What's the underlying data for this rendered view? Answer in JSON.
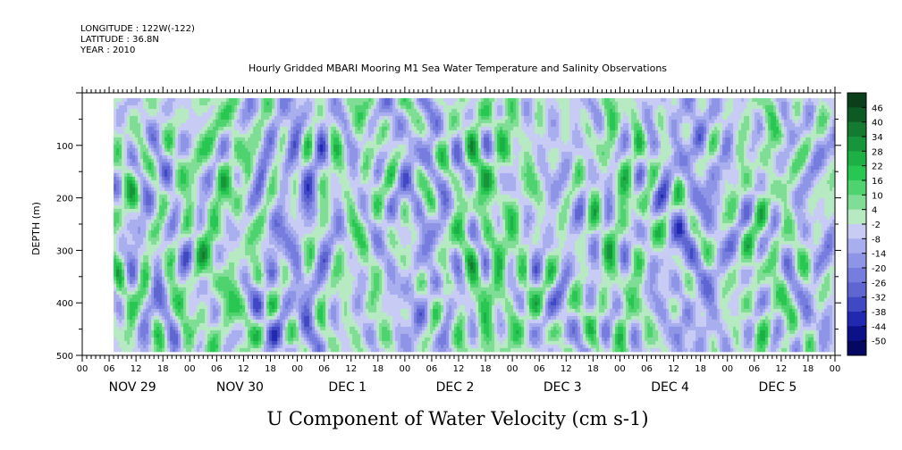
{
  "header": {
    "longitude": "LONGITUDE : 122W(-122)",
    "latitude": "LATITUDE : 36.8N",
    "year": "YEAR : 2010"
  },
  "chart_data": {
    "type": "heatmap",
    "title": "Hourly Gridded MBARI Mooring M1 Sea Water Temperature and Salinity Observations",
    "xlabel": "U Component of Water Velocity (cm s-1)",
    "ylabel": "DEPTH (m)",
    "ylim": [
      500,
      0
    ],
    "y_ticks": [
      100,
      200,
      300,
      400,
      500
    ],
    "hour_ticks": [
      "00",
      "06",
      "12",
      "18",
      "00",
      "06",
      "12",
      "18",
      "00",
      "06",
      "12",
      "18",
      "00",
      "06",
      "12",
      "18",
      "00",
      "06",
      "12",
      "18",
      "00",
      "06",
      "12",
      "18",
      "00",
      "06",
      "12",
      "18",
      "00"
    ],
    "day_labels": [
      "NOV 29",
      "NOV 30",
      "DEC  1",
      "DEC  2",
      "DEC  3",
      "DEC  4",
      "DEC  5"
    ],
    "data_extent": {
      "start_hour": 7,
      "end_hour": 168,
      "depth_top": 10,
      "depth_bottom": 490
    },
    "colorbar": {
      "labels": [
        "46",
        "40",
        "34",
        "28",
        "22",
        "16",
        "10",
        "4",
        "-2",
        "-8",
        "-14",
        "-20",
        "-26",
        "-32",
        "-38",
        "-44",
        "-50"
      ],
      "levels": [
        46,
        40,
        34,
        28,
        22,
        16,
        10,
        4,
        -2,
        -8,
        -14,
        -20,
        -26,
        -32,
        -38,
        -44,
        -50
      ],
      "colors": [
        "#0b3f1a",
        "#0e5a24",
        "#137a2f",
        "#17953a",
        "#1cb045",
        "#28c752",
        "#4fd36e",
        "#7fdd95",
        "#b7eac3",
        "#c8ccf4",
        "#a9aeee",
        "#8f95e6",
        "#767dde",
        "#5f66d2",
        "#4148c5",
        "#2228b0",
        "#0d1189",
        "#050760"
      ]
    }
  }
}
